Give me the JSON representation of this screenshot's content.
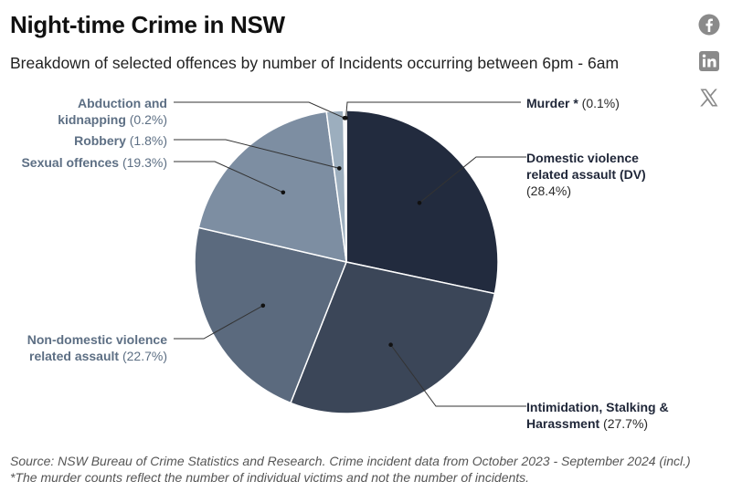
{
  "header": {
    "title": "Night-time Crime in NSW",
    "subtitle": "Breakdown of selected offences by number of Incidents occurring between 6pm - 6am"
  },
  "share": {
    "facebook_icon": "facebook-icon",
    "linkedin_icon": "linkedin-icon",
    "x_icon": "x-icon"
  },
  "chart_data": {
    "type": "pie",
    "series": [
      {
        "name": "Domestic violence related assault (DV)",
        "label_lines": [
          "Domestic violence",
          "related assault (DV)"
        ],
        "value": 28.4,
        "value_label": "(28.4%)",
        "color": "#222b3e"
      },
      {
        "name": "Intimidation, Stalking & Harassment",
        "label_lines": [
          "Intimidation, Stalking &",
          "Harassment"
        ],
        "value": 27.7,
        "value_label": "(27.7%)",
        "color": "#3b4658"
      },
      {
        "name": "Non-domestic violence related assault",
        "label_lines": [
          "Non-domestic violence",
          "related assault"
        ],
        "value": 22.7,
        "value_label": "(22.7%)",
        "color": "#5b6a7e"
      },
      {
        "name": "Sexual offences",
        "label_lines": [
          "Sexual offences"
        ],
        "value": 19.3,
        "value_label": "(19.3%)",
        "color": "#7d8ea2"
      },
      {
        "name": "Robbery",
        "label_lines": [
          "Robbery"
        ],
        "value": 1.8,
        "value_label": "(1.8%)",
        "color": "#9caebe"
      },
      {
        "name": "Abduction and kidnapping",
        "label_lines": [
          "Abduction and",
          "kidnapping"
        ],
        "value": 0.2,
        "value_label": "(0.2%)",
        "color": "#b9c8d4"
      },
      {
        "name": "Murder *",
        "label_lines": [
          "Murder *"
        ],
        "value": 0.1,
        "value_label": "(0.1%)",
        "color": "#d3dde5"
      }
    ]
  },
  "footer": {
    "source": "Source: NSW Bureau of Crime Statistics and Research. Crime incident data from October 2023 - September 2024 (incl.)",
    "note": "*The murder counts reflect the number of individual victims and not the number of incidents."
  }
}
